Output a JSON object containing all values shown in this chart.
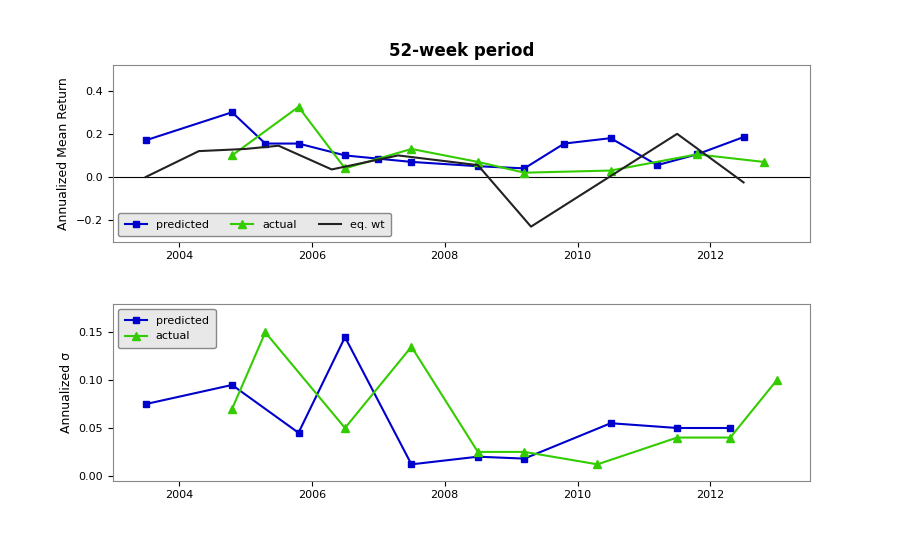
{
  "title": "52-week period",
  "top": {
    "pred_x": [
      2003.5,
      2004.8,
      2005.3,
      2005.8,
      2006.5,
      2007.0,
      2007.5,
      2008.5,
      2009.2,
      2009.8,
      2010.5,
      2011.2,
      2011.8,
      2012.5
    ],
    "pred_y": [
      0.17,
      0.3,
      0.155,
      0.155,
      0.1,
      0.085,
      0.07,
      0.05,
      0.04,
      0.155,
      0.18,
      0.055,
      0.105,
      0.185
    ],
    "act_x": [
      2004.8,
      2005.8,
      2006.5,
      2007.5,
      2008.5,
      2009.2,
      2010.5,
      2011.8,
      2012.8
    ],
    "act_y": [
      0.1,
      0.325,
      0.04,
      0.13,
      0.07,
      0.02,
      0.03,
      0.105,
      0.07
    ],
    "eq_x": [
      2003.5,
      2004.3,
      2005.0,
      2005.5,
      2006.3,
      2007.3,
      2008.5,
      2009.3,
      2011.5,
      2012.5
    ],
    "eq_y": [
      0.0,
      0.12,
      0.13,
      0.145,
      0.035,
      0.1,
      0.055,
      -0.23,
      0.2,
      -0.025
    ],
    "ylabel": "Annualized Mean Return",
    "ylim": [
      -0.3,
      0.52
    ],
    "yticks": [
      -0.2,
      0.0,
      0.2,
      0.4
    ]
  },
  "bottom": {
    "pred_x": [
      2003.5,
      2004.8,
      2005.8,
      2006.5,
      2007.5,
      2008.5,
      2009.2,
      2010.5,
      2011.5,
      2012.3
    ],
    "pred_y": [
      0.075,
      0.095,
      0.045,
      0.145,
      0.012,
      0.02,
      0.018,
      0.055,
      0.05,
      0.05
    ],
    "act_x": [
      2004.8,
      2005.3,
      2006.5,
      2007.5,
      2008.5,
      2009.2,
      2010.3,
      2011.5,
      2012.3,
      2013.0
    ],
    "act_y": [
      0.07,
      0.15,
      0.05,
      0.135,
      0.025,
      0.025,
      0.012,
      0.04,
      0.04,
      0.1
    ],
    "ylabel": "Annualized σ",
    "ylim": [
      -0.005,
      0.18
    ],
    "yticks": [
      0.0,
      0.05,
      0.1,
      0.15
    ]
  },
  "predicted_color": "#0000CC",
  "actual_color": "#33CC00",
  "eq_wt_color": "#222222",
  "bg_color": "#ffffff",
  "plot_bg": "#ffffff",
  "title_fontsize": 12,
  "axis_fontsize": 9,
  "tick_fontsize": 8
}
